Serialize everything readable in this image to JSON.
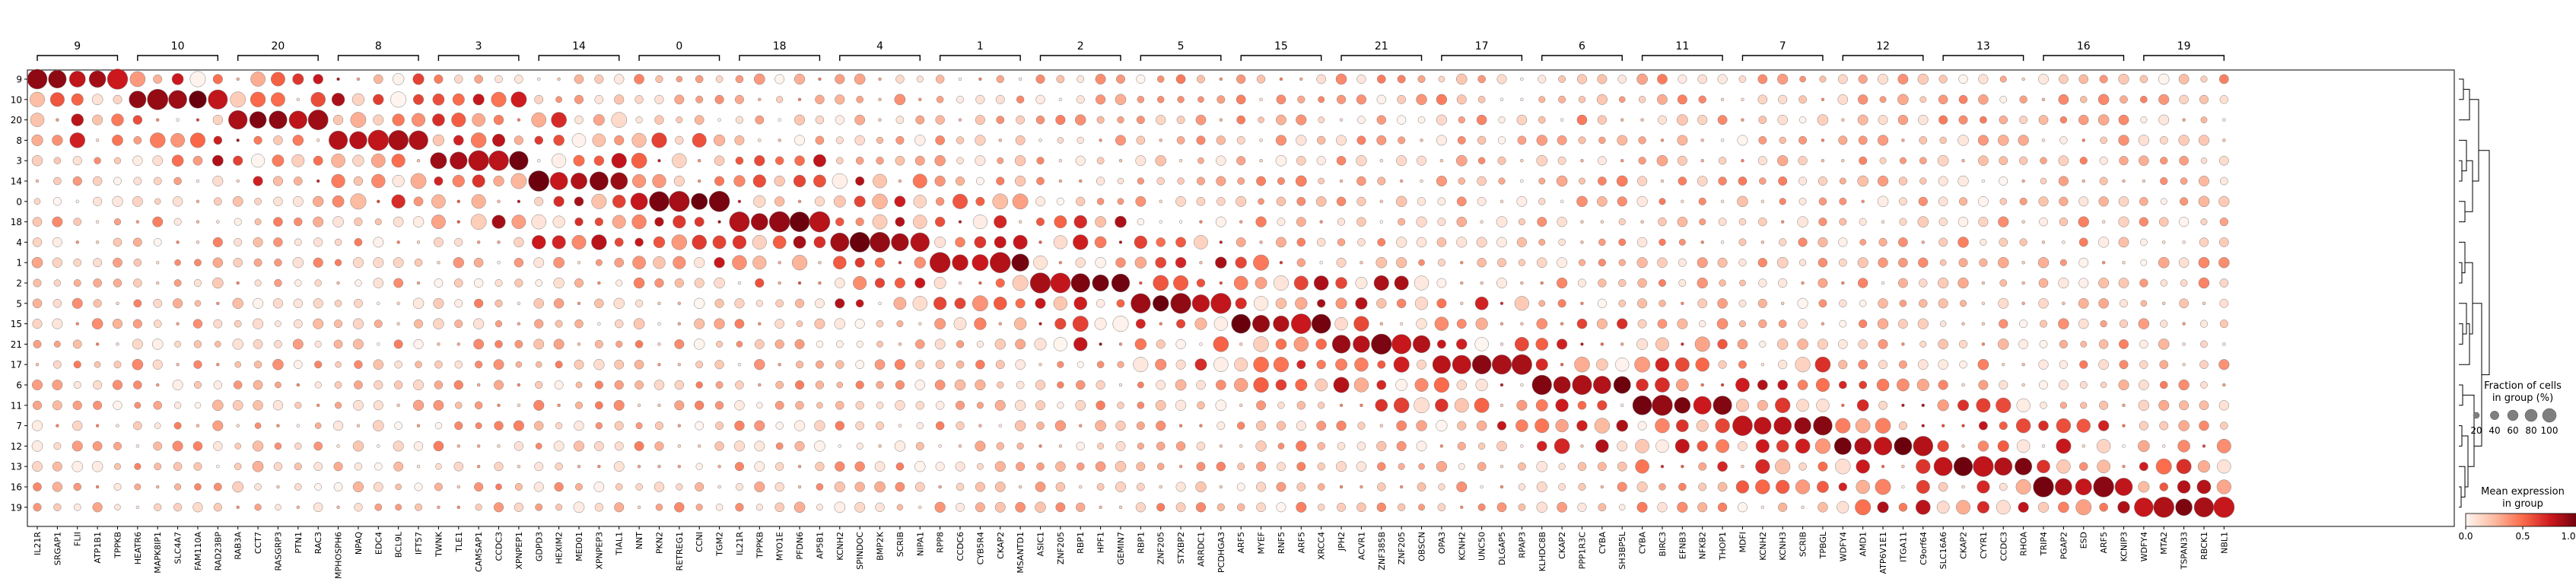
{
  "chart_data": {
    "type": "dotplot",
    "title": "",
    "xlabel": "",
    "ylabel": "",
    "row_labels": [
      "9",
      "10",
      "20",
      "8",
      "3",
      "14",
      "0",
      "18",
      "4",
      "1",
      "2",
      "5",
      "15",
      "21",
      "17",
      "6",
      "11",
      "7",
      "12",
      "13",
      "16",
      "19"
    ],
    "groups": [
      {
        "label": "9",
        "genes": [
          "IL21R",
          "SRGAP1",
          "FLII",
          "ATP1B1",
          "TPPKB"
        ]
      },
      {
        "label": "10",
        "genes": [
          "HEATR6",
          "MAPK8IP1",
          "SLC4A7",
          "FAM110A",
          "RAD23BP"
        ]
      },
      {
        "label": "20",
        "genes": [
          "RAB3A",
          "CCT7",
          "RASGRP3",
          "PTN1",
          "RAC3"
        ]
      },
      {
        "label": "8",
        "genes": [
          "MPHOSPH6",
          "NPAQ",
          "EDC4",
          "BCL9L",
          "IFT57"
        ]
      },
      {
        "label": "3",
        "genes": [
          "TWNK",
          "TLE1",
          "CAMSAP1",
          "CCDC3",
          "XPNPEP1"
        ]
      },
      {
        "label": "14",
        "genes": [
          "GDPD3",
          "HEXIM2",
          "MED01",
          "XPNPEP3",
          "TIAL1"
        ]
      },
      {
        "label": "0",
        "genes": [
          "NNT",
          "PKN2",
          "RETREG1",
          "CCNI",
          "TGM2"
        ]
      },
      {
        "label": "18",
        "genes": [
          "IL21R",
          "TPPKB",
          "MYO1E",
          "PFDN6",
          "AP5B1"
        ]
      },
      {
        "label": "4",
        "genes": [
          "KCNH2",
          "SPINDOC",
          "BMP2K",
          "SCRIB",
          "NIPA1"
        ]
      },
      {
        "label": "1",
        "genes": [
          "RPP8",
          "CCDC6",
          "CYB5R4",
          "CKAP2",
          "MSANTD1"
        ]
      },
      {
        "label": "2",
        "genes": [
          "ASIC1",
          "ZNF205",
          "RBP1",
          "HPF1",
          "GEMIN7"
        ]
      },
      {
        "label": "5",
        "genes": [
          "RBP1",
          "ZNF205",
          "STXBP2",
          "ARRDC1",
          "PCDHGA3"
        ]
      },
      {
        "label": "15",
        "genes": [
          "ARF5",
          "MYEF",
          "RNF5",
          "ARF5",
          "XRCC4"
        ]
      },
      {
        "label": "21",
        "genes": [
          "JPH2",
          "ACVR1",
          "ZNF385B",
          "ZNF205",
          "OBSCN"
        ]
      },
      {
        "label": "17",
        "genes": [
          "OPA3",
          "KCNH2",
          "UNC50",
          "DLGAP5",
          "RPAP3"
        ]
      },
      {
        "label": "6",
        "genes": [
          "KLHDC8B",
          "CKAP2",
          "PPP1R3C",
          "CYBA",
          "SH3BP5L"
        ]
      },
      {
        "label": "11",
        "genes": [
          "CYBA",
          "BIRC3",
          "EFNB3",
          "NFKB2",
          "THOP1"
        ]
      },
      {
        "label": "7",
        "genes": [
          "MDFI",
          "KCNH2",
          "KCNH3",
          "SCRIB",
          "TPBGL"
        ]
      },
      {
        "label": "12",
        "genes": [
          "WDFY4",
          "AMD1",
          "ATP6V1E1",
          "ITGA11",
          "C9orf64"
        ]
      },
      {
        "label": "13",
        "genes": [
          "SLC16A6",
          "CKAP2",
          "CYYR1",
          "CCDC3",
          "RHOA"
        ]
      },
      {
        "label": "16",
        "genes": [
          "TRIP4",
          "PGAP2",
          "ESD",
          "ARF5",
          "KCNIP3"
        ]
      },
      {
        "label": "19",
        "genes": [
          "WDFY4",
          "MTA2",
          "TSPAN33",
          "RBCK1",
          "NBL1"
        ]
      }
    ],
    "group_order": [
      "9",
      "10",
      "20",
      "8",
      "3",
      "14",
      "0",
      "18",
      "4",
      "1",
      "2",
      "5",
      "15",
      "21",
      "17",
      "6",
      "11",
      "7",
      "12",
      "13",
      "16",
      "19"
    ],
    "legend": {
      "size_title": "Fraction of cells\nin group (%)",
      "size_ticks": [
        20,
        40,
        60,
        80,
        100
      ],
      "color_title": "Mean expression\nin group",
      "color_ticks": [
        "0.0",
        "0.5",
        "1.0"
      ],
      "color_range": [
        0.0,
        1.0
      ],
      "size_range": [
        0,
        100
      ]
    },
    "colormap": [
      "#fff5f0",
      "#fcbba1",
      "#fb6a4a",
      "#cb181d",
      "#67000d"
    ],
    "dendrogram": true
  }
}
